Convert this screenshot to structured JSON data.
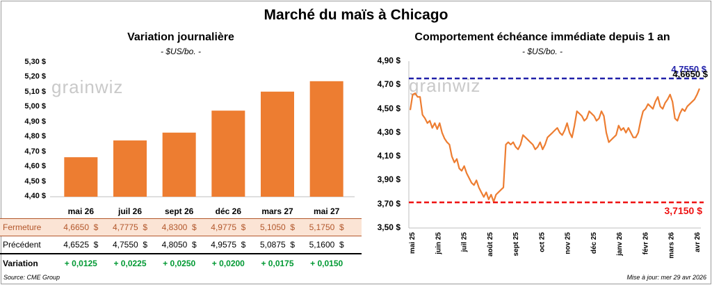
{
  "title": "Marché du maïs à Chicago",
  "source": "Source: CME Group",
  "updated": "Mise à jour: mer 29 avr 2026",
  "watermark": "grainwiz",
  "chart_data": [
    {
      "type": "bar",
      "title": "Variation journalière",
      "unit": "- $US/bo. -",
      "categories": [
        "mai 26",
        "juil 26",
        "sept 26",
        "déc 26",
        "mars 27",
        "mai 27"
      ],
      "values": [
        4.665,
        4.7775,
        4.83,
        4.9775,
        5.105,
        5.175
      ],
      "ylim": [
        4.4,
        5.3
      ],
      "yticks": [
        "4,40 $",
        "4,50 $",
        "4,60 $",
        "4,70 $",
        "4,80 $",
        "4,90 $",
        "5,00 $",
        "5,10 $",
        "5,20 $",
        "5,30 $"
      ],
      "bar_color": "#ed7d31",
      "grid": false,
      "table": {
        "rows": [
          {
            "label": "Fermeture",
            "values": [
              "4,6650  $",
              "4,7775  $",
              "4,8300  $",
              "4,9775  $",
              "5,1050  $",
              "5,1750  $"
            ]
          },
          {
            "label": "Précédent",
            "values": [
              "4,6525  $",
              "4,7550  $",
              "4,8050  $",
              "4,9575  $",
              "5,0875  $",
              "5,1600  $"
            ]
          },
          {
            "label": "Variation",
            "values": [
              "+ 0,0125",
              "+ 0,0225",
              "+ 0,0250",
              "+ 0,0200",
              "+ 0,0175",
              "+ 0,0150"
            ]
          }
        ],
        "fermeture_color": "#b2562a",
        "fermeture_bg": "#fbe4d5",
        "variation_color": "#009933"
      }
    },
    {
      "type": "line",
      "title": "Comportement  échéance immédiate depuis 1 an",
      "unit": "- $US/bo. -",
      "ylim": [
        3.5,
        4.9
      ],
      "yticks": [
        "3,50 $",
        "3,70 $",
        "3,90 $",
        "4,10 $",
        "4,30 $",
        "4,50 $",
        "4,70 $",
        "4,90 $"
      ],
      "xticks": [
        "mai 25",
        "juin 25",
        "juil 25",
        "août 25",
        "sept 25",
        "oct 25",
        "nov 25",
        "déc 25",
        "janv 26",
        "févr 26",
        "mars 26",
        "avr 26"
      ],
      "series_color": "#ed7d31",
      "values": [
        4.49,
        4.62,
        4.63,
        4.6,
        4.6,
        4.45,
        4.42,
        4.38,
        4.4,
        4.34,
        4.38,
        4.33,
        4.38,
        4.3,
        4.25,
        4.22,
        4.2,
        4.1,
        4.05,
        4.08,
        4.0,
        3.98,
        4.02,
        3.96,
        3.92,
        3.88,
        3.86,
        3.9,
        3.84,
        3.8,
        3.76,
        3.8,
        3.74,
        3.78,
        3.72,
        3.78,
        3.8,
        3.82,
        3.84,
        4.2,
        4.22,
        4.2,
        4.22,
        4.18,
        4.16,
        4.2,
        4.28,
        4.26,
        4.24,
        4.22,
        4.2,
        4.16,
        4.18,
        4.22,
        4.16,
        4.2,
        4.26,
        4.28,
        4.3,
        4.32,
        4.34,
        4.3,
        4.28,
        4.32,
        4.38,
        4.3,
        4.26,
        4.36,
        4.48,
        4.46,
        4.44,
        4.4,
        4.42,
        4.48,
        4.46,
        4.44,
        4.4,
        4.42,
        4.48,
        4.44,
        4.3,
        4.22,
        4.24,
        4.26,
        4.28,
        4.36,
        4.32,
        4.34,
        4.3,
        4.34,
        4.3,
        4.26,
        4.26,
        4.3,
        4.4,
        4.48,
        4.5,
        4.54,
        4.52,
        4.5,
        4.56,
        4.6,
        4.52,
        4.5,
        4.55,
        4.58,
        4.62,
        4.56,
        4.42,
        4.4,
        4.46,
        4.5,
        4.48,
        4.52,
        4.54,
        4.56,
        4.58,
        4.62,
        4.67
      ],
      "resistance": {
        "value": 4.755,
        "label": "4,7550 $",
        "color": "#2222aa"
      },
      "support": {
        "value": 3.715,
        "label": "3,7150 $",
        "color": "#ee1111"
      },
      "last_label": "4,6650 $"
    }
  ]
}
